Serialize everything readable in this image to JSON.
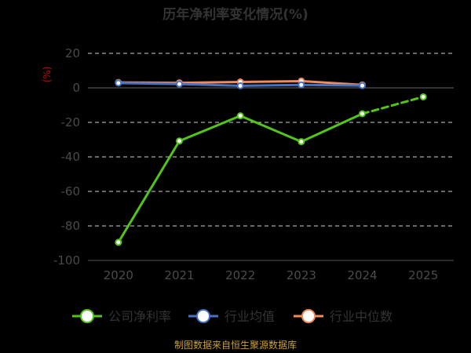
{
  "chart_data": {
    "type": "line",
    "title": "历年净利率变化情况(%)",
    "unit_label": "(%)",
    "categories": [
      "2020",
      "2021",
      "2022",
      "2023",
      "2024",
      "2025"
    ],
    "y_ticks": [
      "20",
      "0",
      "-20",
      "-40",
      "-60",
      "-80",
      "-100"
    ],
    "ylim": [
      -100,
      20
    ],
    "grid": true,
    "legend_position": "bottom",
    "series": [
      {
        "name": "公司净利率",
        "color": "#52c41a",
        "dashed_from_index": 4,
        "values": [
          -89.5,
          -30.8,
          -16.2,
          -31.2,
          -15.0,
          -5.2
        ]
      },
      {
        "name": "行业均值",
        "color": "#4472c4",
        "values": [
          2.8,
          2.2,
          1.2,
          1.7,
          1.3,
          null
        ]
      },
      {
        "name": "行业中位数",
        "color": "#f28a5c",
        "values": [
          3.1,
          2.9,
          3.4,
          3.9,
          1.7,
          null
        ]
      }
    ],
    "source": "制图数据来自恒生聚源数据库"
  }
}
